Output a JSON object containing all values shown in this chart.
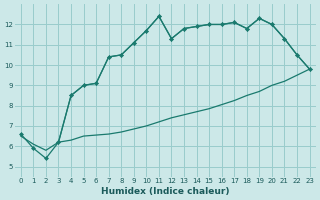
{
  "xlabel": "Humidex (Indice chaleur)",
  "bg_color": "#cce8e8",
  "grid_color": "#99cccc",
  "line_color": "#1a7a6e",
  "xlim": [
    -0.5,
    23.5
  ],
  "ylim": [
    4.5,
    13.0
  ],
  "yticks": [
    5,
    6,
    7,
    8,
    9,
    10,
    11,
    12
  ],
  "xticks": [
    0,
    1,
    2,
    3,
    4,
    5,
    6,
    7,
    8,
    9,
    10,
    11,
    12,
    13,
    14,
    15,
    16,
    17,
    18,
    19,
    20,
    21,
    22,
    23
  ],
  "curve_peaked_x": [
    3,
    4,
    5,
    6,
    7,
    8,
    9,
    10,
    11,
    12,
    13,
    14,
    15,
    16,
    17,
    18,
    19,
    20,
    21,
    22,
    23
  ],
  "curve_peaked_y": [
    6.2,
    8.5,
    9.0,
    9.1,
    10.4,
    10.5,
    11.1,
    11.7,
    12.4,
    11.3,
    11.8,
    11.9,
    12.0,
    12.0,
    12.1,
    11.8,
    12.3,
    12.0,
    11.3,
    10.5,
    9.8
  ],
  "curve_sharp_x": [
    0,
    1,
    2,
    3,
    4,
    5,
    6,
    7,
    8,
    9,
    10,
    11,
    12,
    13,
    14,
    15,
    16,
    17,
    18,
    19,
    20,
    21,
    22,
    23
  ],
  "curve_sharp_y": [
    6.6,
    5.9,
    5.4,
    6.2,
    8.5,
    9.0,
    9.1,
    10.4,
    10.5,
    11.1,
    11.7,
    12.4,
    11.3,
    11.8,
    11.9,
    12.0,
    12.0,
    12.1,
    11.8,
    12.3,
    12.0,
    11.3,
    10.5,
    9.8
  ],
  "curve_diag_x": [
    0,
    1,
    2,
    3,
    4,
    5,
    6,
    7,
    8,
    9,
    10,
    11,
    12,
    13,
    14,
    15,
    16,
    17,
    18,
    19,
    20,
    21,
    22,
    23
  ],
  "curve_diag_y": [
    6.5,
    6.1,
    5.8,
    6.2,
    6.3,
    6.5,
    6.55,
    6.6,
    6.7,
    6.85,
    7.0,
    7.2,
    7.4,
    7.55,
    7.7,
    7.85,
    8.05,
    8.25,
    8.5,
    8.7,
    9.0,
    9.2,
    9.5,
    9.8
  ]
}
